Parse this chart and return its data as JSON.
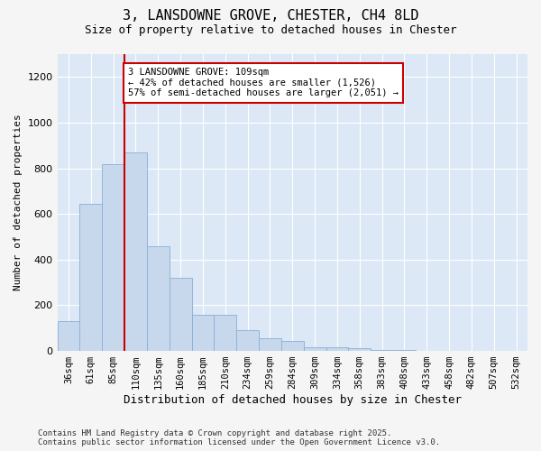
{
  "title1": "3, LANSDOWNE GROVE, CHESTER, CH4 8LD",
  "title2": "Size of property relative to detached houses in Chester",
  "xlabel": "Distribution of detached houses by size in Chester",
  "ylabel": "Number of detached properties",
  "categories": [
    "36sqm",
    "61sqm",
    "85sqm",
    "110sqm",
    "135sqm",
    "160sqm",
    "185sqm",
    "210sqm",
    "234sqm",
    "259sqm",
    "284sqm",
    "309sqm",
    "334sqm",
    "358sqm",
    "383sqm",
    "408sqm",
    "433sqm",
    "458sqm",
    "482sqm",
    "507sqm",
    "532sqm"
  ],
  "values": [
    130,
    645,
    820,
    870,
    460,
    320,
    160,
    160,
    90,
    55,
    42,
    18,
    18,
    12,
    5,
    3,
    2,
    1,
    1,
    1,
    1
  ],
  "bar_color": "#c8d8ec",
  "bar_edge_color": "#8aaed4",
  "annotation_text": "3 LANSDOWNE GROVE: 109sqm\n← 42% of detached houses are smaller (1,526)\n57% of semi-detached houses are larger (2,051) →",
  "annotation_box_color": "#ffffff",
  "annotation_box_edge": "#cc0000",
  "vline_color": "#cc0000",
  "ylim": [
    0,
    1300
  ],
  "plot_bg_color": "#dce8f5",
  "fig_bg_color": "#f5f5f5",
  "grid_color": "#ffffff",
  "footer1": "Contains HM Land Registry data © Crown copyright and database right 2025.",
  "footer2": "Contains public sector information licensed under the Open Government Licence v3.0.",
  "title1_fontsize": 11,
  "title2_fontsize": 9,
  "ylabel_fontsize": 8,
  "xlabel_fontsize": 9,
  "tick_fontsize": 7.5,
  "annotation_fontsize": 7.5
}
